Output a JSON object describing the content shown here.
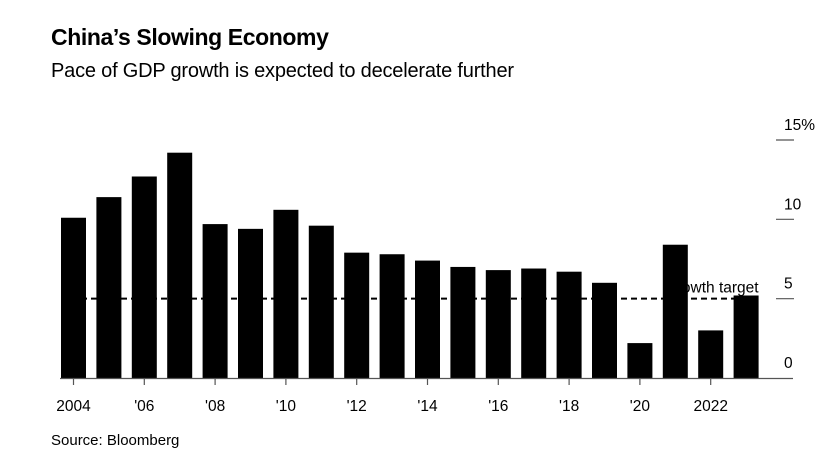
{
  "chart_data": {
    "type": "bar",
    "title": "China’s Slowing Economy",
    "subtitle": "Pace of GDP growth is expected to decelerate further",
    "source": "Source: Bloomberg",
    "categories": [
      "2004",
      "2005",
      "2006",
      "2007",
      "2008",
      "2009",
      "2010",
      "2011",
      "2012",
      "2013",
      "2014",
      "2015",
      "2016",
      "2017",
      "2018",
      "2019",
      "2020",
      "2021",
      "2022",
      "2023"
    ],
    "values": [
      10.1,
      11.4,
      12.7,
      14.2,
      9.7,
      9.4,
      10.6,
      9.6,
      7.9,
      7.8,
      7.4,
      7.0,
      6.8,
      6.9,
      6.7,
      6.0,
      2.2,
      8.4,
      3.0,
      5.2
    ],
    "x_tick_labels": [
      {
        "category": "2004",
        "label": "2004"
      },
      {
        "category": "2006",
        "label": "'06"
      },
      {
        "category": "2008",
        "label": "'08"
      },
      {
        "category": "2010",
        "label": "'10"
      },
      {
        "category": "2012",
        "label": "'12"
      },
      {
        "category": "2014",
        "label": "'14"
      },
      {
        "category": "2016",
        "label": "'16"
      },
      {
        "category": "2018",
        "label": "'18"
      },
      {
        "category": "2020",
        "label": "'20"
      },
      {
        "category": "2022",
        "label": "2022"
      }
    ],
    "y_ticks": [
      {
        "value": 0,
        "label": "0"
      },
      {
        "value": 5,
        "label": "5"
      },
      {
        "value": 10,
        "label": "10"
      },
      {
        "value": 15,
        "label": "15%"
      }
    ],
    "ylim": [
      0,
      15
    ],
    "y_axis_side": "right",
    "xlabel": "",
    "ylabel": "",
    "grid": false,
    "bar_color": "#000000",
    "reference_line": {
      "value": 5,
      "label": "Growth target",
      "style": "dashed",
      "color": "#000000"
    }
  }
}
